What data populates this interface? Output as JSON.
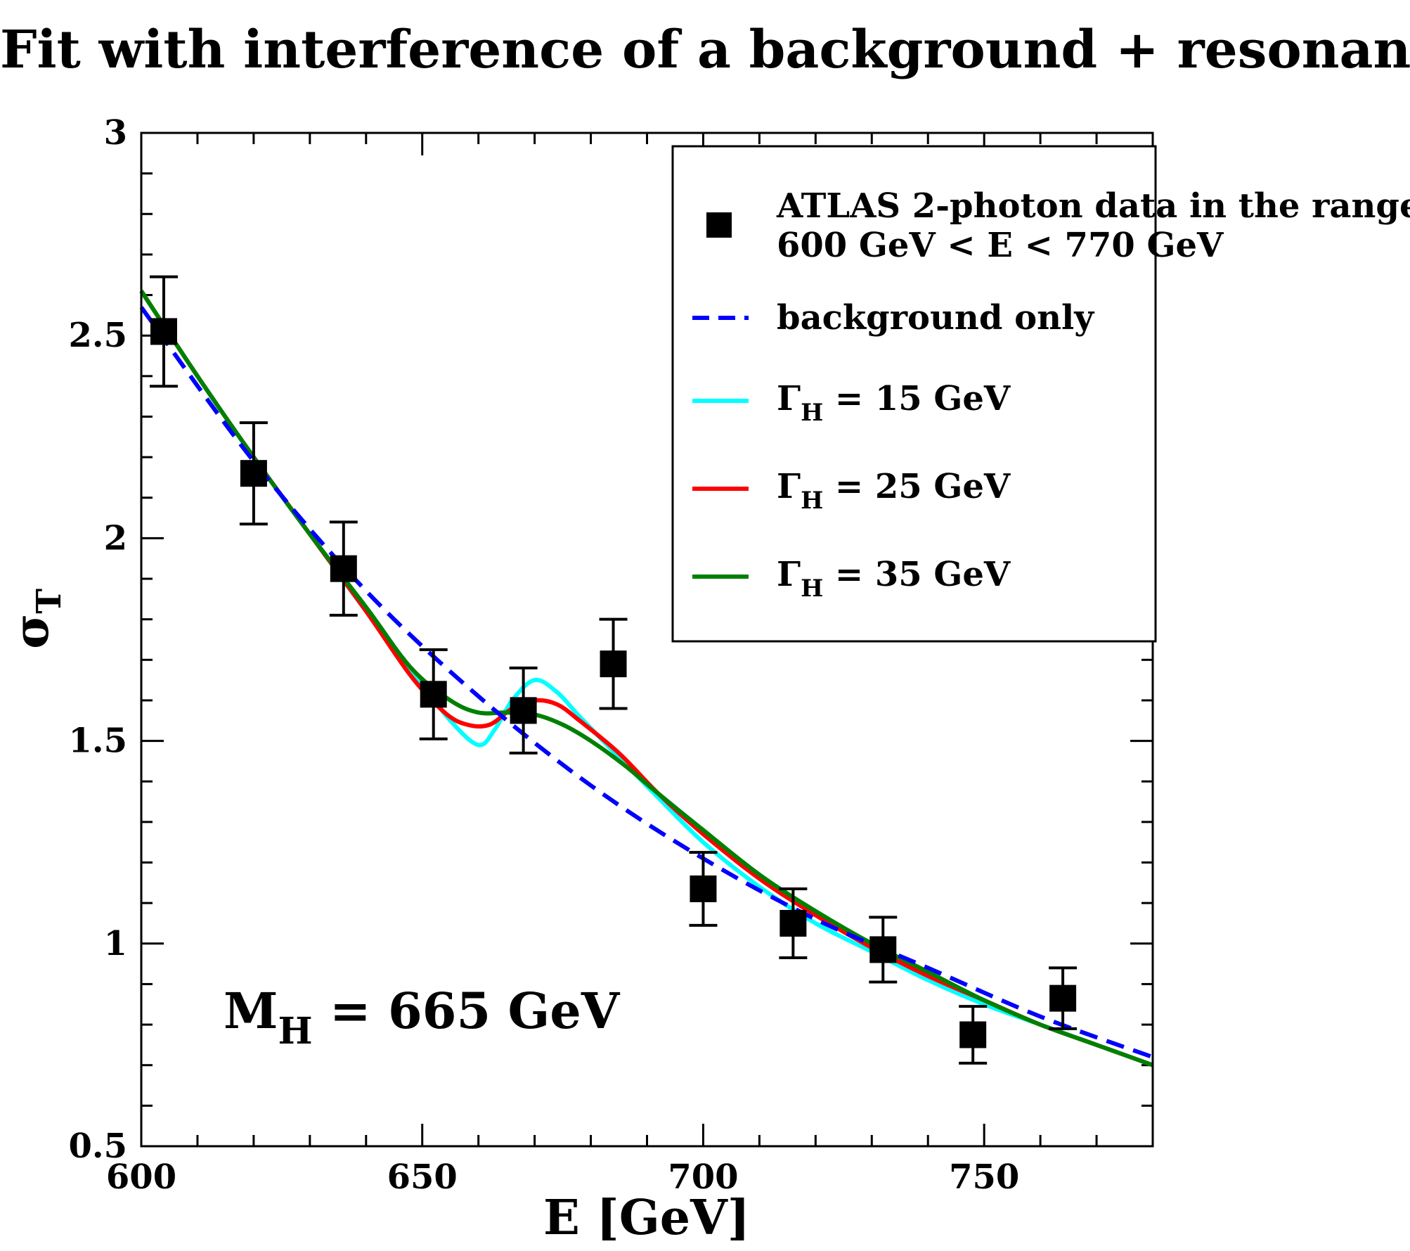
{
  "title": "Fit with interference of a background + resonance",
  "chart_data": {
    "type": "line",
    "title": "Fit with interference of a background + resonance",
    "xlabel": "E [GeV]",
    "ylabel_main": "σ",
    "ylabel_sub": "T",
    "xlim": [
      600,
      780
    ],
    "ylim": [
      0.5,
      3.0
    ],
    "x_ticks": [
      600,
      650,
      700,
      750
    ],
    "x_tick_labels": [
      "600",
      "650",
      "700",
      "750"
    ],
    "y_ticks": [
      0.5,
      1.0,
      1.5,
      2.0,
      2.5,
      3.0
    ],
    "y_tick_labels": [
      "0.5",
      "1",
      "1.5",
      "2",
      "2.5",
      "3"
    ],
    "annotation": {
      "main": "M",
      "sub": "H",
      "rest": " = 665 GeV"
    },
    "legend": [
      {
        "key": "data",
        "line1": "ATLAS 2-photon data in the range",
        "line2": "600 GeV < E < 770 GeV",
        "style": "square",
        "color": "#000000"
      },
      {
        "key": "bg",
        "main": "background only",
        "style": "dashed",
        "color": "#0000ff"
      },
      {
        "key": "w15",
        "main": "Γ",
        "sub": "H",
        "rest": " = 15 GeV",
        "style": "solid",
        "color": "#00ffff"
      },
      {
        "key": "w25",
        "main": "Γ",
        "sub": "H",
        "rest": " = 25 GeV",
        "style": "solid",
        "color": "#ff0000"
      },
      {
        "key": "w35",
        "main": "Γ",
        "sub": "H",
        "rest": " = 35 GeV",
        "style": "solid",
        "color": "#008000"
      }
    ],
    "data_points": [
      {
        "x": 604,
        "y": 2.51,
        "err": 0.135
      },
      {
        "x": 620,
        "y": 2.16,
        "err": 0.125
      },
      {
        "x": 636,
        "y": 1.925,
        "err": 0.115
      },
      {
        "x": 652,
        "y": 1.615,
        "err": 0.11
      },
      {
        "x": 668,
        "y": 1.575,
        "err": 0.105
      },
      {
        "x": 684,
        "y": 1.69,
        "err": 0.11
      },
      {
        "x": 700,
        "y": 1.135,
        "err": 0.09
      },
      {
        "x": 716,
        "y": 1.05,
        "err": 0.085
      },
      {
        "x": 732,
        "y": 0.985,
        "err": 0.08
      },
      {
        "x": 748,
        "y": 0.775,
        "err": 0.07
      },
      {
        "x": 764,
        "y": 0.865,
        "err": 0.075
      }
    ],
    "series": [
      {
        "name": "background only",
        "color": "#0000ff",
        "dash": true,
        "x": [
          600,
          620,
          640,
          660,
          680,
          700,
          720,
          740,
          760,
          780
        ],
        "y": [
          2.57,
          2.19,
          1.87,
          1.61,
          1.39,
          1.21,
          1.06,
          0.94,
          0.82,
          0.72
        ]
      },
      {
        "name": "Γ_H = 15 GeV",
        "color": "#00ffff",
        "dash": false,
        "x": [
          600,
          610,
          620,
          630,
          640,
          650,
          655,
          660,
          663,
          666,
          670,
          674,
          678,
          685,
          692,
          700,
          710,
          720,
          730,
          740,
          750,
          760,
          770,
          780
        ],
        "y": [
          2.61,
          2.4,
          2.2,
          2.01,
          1.82,
          1.64,
          1.55,
          1.49,
          1.53,
          1.6,
          1.65,
          1.62,
          1.56,
          1.46,
          1.36,
          1.25,
          1.14,
          1.05,
          0.98,
          0.91,
          0.85,
          0.8,
          0.75,
          0.7
        ]
      },
      {
        "name": "Γ_H = 25 GeV",
        "color": "#ff0000",
        "dash": false,
        "x": [
          600,
          610,
          620,
          630,
          640,
          648,
          654,
          658,
          662,
          666,
          670,
          674,
          678,
          685,
          692,
          700,
          710,
          720,
          730,
          740,
          750,
          760,
          770,
          780
        ],
        "y": [
          2.61,
          2.4,
          2.2,
          2.01,
          1.82,
          1.66,
          1.57,
          1.54,
          1.54,
          1.58,
          1.6,
          1.59,
          1.55,
          1.47,
          1.37,
          1.27,
          1.16,
          1.07,
          0.99,
          0.92,
          0.86,
          0.8,
          0.75,
          0.7
        ]
      },
      {
        "name": "Γ_H = 35 GeV",
        "color": "#008000",
        "dash": false,
        "x": [
          600,
          610,
          620,
          630,
          640,
          648,
          655,
          660,
          665,
          670,
          675,
          680,
          686,
          692,
          700,
          710,
          720,
          730,
          740,
          750,
          760,
          770,
          780
        ],
        "y": [
          2.61,
          2.4,
          2.2,
          2.01,
          1.83,
          1.68,
          1.6,
          1.57,
          1.57,
          1.565,
          1.54,
          1.5,
          1.44,
          1.37,
          1.28,
          1.17,
          1.08,
          1.0,
          0.93,
          0.86,
          0.8,
          0.75,
          0.7
        ]
      }
    ]
  }
}
